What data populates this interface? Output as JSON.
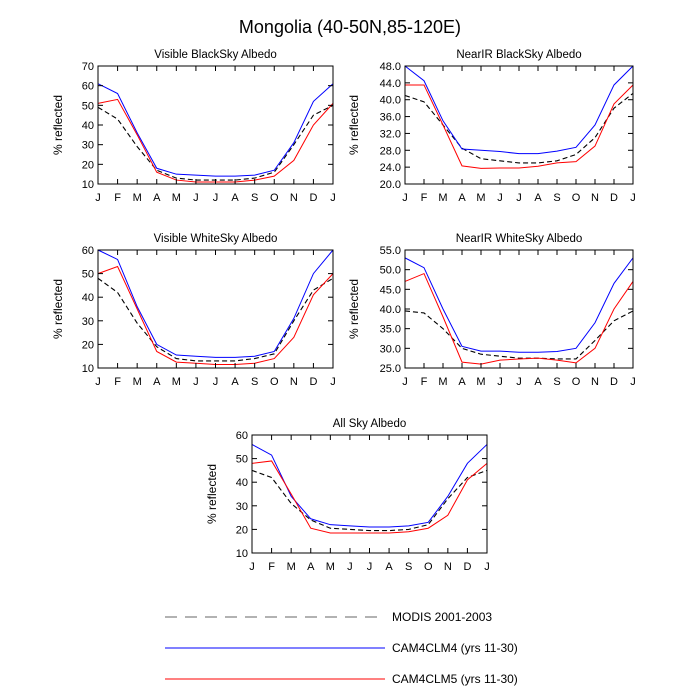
{
  "page": {
    "title": "Mongolia (40-50N,85-120E)"
  },
  "colors": {
    "modis": "#000000",
    "clm4": "#0000ff",
    "clm5": "#ff0000",
    "legend_modis": "#999999"
  },
  "legend": [
    {
      "label": "MODIS 2001-2003",
      "style": "dashed"
    },
    {
      "label": "CAM4CLM4 (yrs 11-30)",
      "style": "solid-blue"
    },
    {
      "label": "CAM4CLM5 (yrs 11-30)",
      "style": "solid-red"
    }
  ],
  "chart_data": [
    {
      "type": "line",
      "title": "Visible BlackSky Albedo",
      "ylabel": "% reflected",
      "categories": [
        "J",
        "F",
        "M",
        "A",
        "M",
        "J",
        "J",
        "A",
        "S",
        "O",
        "N",
        "D",
        "J"
      ],
      "ylim": [
        10,
        70
      ],
      "yticks": [
        10,
        20,
        30,
        40,
        50,
        60,
        70
      ],
      "ytick_labels": [
        "10",
        "20",
        "30",
        "40",
        "50",
        "60",
        "70"
      ],
      "series": [
        {
          "name": "MODIS 2001-2003",
          "values": [
            49,
            43,
            29,
            17,
            13,
            12,
            12,
            12,
            13,
            16,
            30,
            45,
            50
          ]
        },
        {
          "name": "CAM4CLM4 (yrs 11-30)",
          "values": [
            61,
            56,
            36,
            18,
            15,
            14.5,
            14,
            14,
            14.5,
            17,
            31,
            52,
            61
          ]
        },
        {
          "name": "CAM4CLM5 (yrs 11-30)",
          "values": [
            51,
            53,
            35,
            16,
            12,
            11,
            11,
            11,
            12,
            14,
            22,
            40,
            51
          ]
        }
      ]
    },
    {
      "type": "line",
      "title": "NearIR BlackSky Albedo",
      "ylabel": "% reflected",
      "categories": [
        "J",
        "F",
        "M",
        "A",
        "M",
        "J",
        "J",
        "A",
        "S",
        "O",
        "N",
        "D",
        "J"
      ],
      "ylim": [
        20,
        48
      ],
      "yticks": [
        20,
        24,
        28,
        32,
        36,
        40,
        44,
        48
      ],
      "ytick_labels": [
        "20.0",
        "24.0",
        "28.0",
        "32.0",
        "36.0",
        "40.0",
        "44.0",
        "48.0"
      ],
      "series": [
        {
          "name": "MODIS 2001-2003",
          "values": [
            41,
            39.5,
            34,
            28.5,
            26,
            25.5,
            25,
            25,
            25.5,
            27,
            31,
            38,
            41.5
          ]
        },
        {
          "name": "CAM4CLM4 (yrs 11-30)",
          "values": [
            48,
            44.5,
            35,
            28.3,
            28,
            27.7,
            27.2,
            27.2,
            27.8,
            28.7,
            34,
            43.5,
            48
          ]
        },
        {
          "name": "CAM4CLM5 (yrs 11-30)",
          "values": [
            43.5,
            43.5,
            34,
            24.3,
            23.7,
            23.8,
            23.8,
            24.2,
            25,
            25.3,
            29,
            39,
            43.5
          ]
        }
      ]
    },
    {
      "type": "line",
      "title": "Visible WhiteSky Albedo",
      "ylabel": "% reflected",
      "categories": [
        "J",
        "F",
        "M",
        "A",
        "M",
        "J",
        "J",
        "A",
        "S",
        "O",
        "N",
        "D",
        "J"
      ],
      "ylim": [
        10,
        60
      ],
      "yticks": [
        10,
        20,
        30,
        40,
        50,
        60
      ],
      "ytick_labels": [
        "10",
        "20",
        "30",
        "40",
        "50",
        "60"
      ],
      "series": [
        {
          "name": "MODIS 2001-2003",
          "values": [
            48,
            42,
            29,
            19,
            14,
            13,
            13,
            13,
            14,
            16,
            30,
            43,
            48
          ]
        },
        {
          "name": "CAM4CLM4 (yrs 11-30)",
          "values": [
            60,
            56,
            36,
            20,
            15.5,
            15,
            14.5,
            14.5,
            15,
            17,
            31,
            50,
            60
          ]
        },
        {
          "name": "CAM4CLM5 (yrs 11-30)",
          "values": [
            50,
            53,
            35,
            17,
            12.5,
            12,
            11.5,
            11.5,
            12,
            14,
            23,
            41,
            50
          ]
        }
      ]
    },
    {
      "type": "line",
      "title": "NearIR WhiteSky Albedo",
      "ylabel": "% reflected",
      "categories": [
        "J",
        "F",
        "M",
        "A",
        "M",
        "J",
        "J",
        "A",
        "S",
        "O",
        "N",
        "D",
        "J"
      ],
      "ylim": [
        25,
        55
      ],
      "yticks": [
        25,
        30,
        35,
        40,
        45,
        50,
        55
      ],
      "ytick_labels": [
        "25.0",
        "30.0",
        "35.0",
        "40.0",
        "45.0",
        "50.0",
        "55.0"
      ],
      "series": [
        {
          "name": "MODIS 2001-2003",
          "values": [
            39.5,
            39,
            35,
            30,
            28.5,
            28,
            27.5,
            27.5,
            27.3,
            27.3,
            32,
            37,
            39.5
          ]
        },
        {
          "name": "CAM4CLM4 (yrs 11-30)",
          "values": [
            53,
            50.5,
            40,
            30.5,
            29.3,
            29.3,
            29,
            29,
            29.2,
            30,
            36.5,
            46.5,
            53
          ]
        },
        {
          "name": "CAM4CLM5 (yrs 11-30)",
          "values": [
            47,
            49,
            38,
            26.5,
            26,
            27,
            27.3,
            27.5,
            27,
            26.3,
            30,
            40,
            47
          ]
        }
      ]
    },
    {
      "type": "line",
      "title": "All Sky Albedo",
      "ylabel": "% reflected",
      "categories": [
        "J",
        "F",
        "M",
        "A",
        "M",
        "J",
        "J",
        "A",
        "S",
        "O",
        "N",
        "D",
        "J"
      ],
      "ylim": [
        10,
        60
      ],
      "yticks": [
        10,
        20,
        30,
        40,
        50,
        60
      ],
      "ytick_labels": [
        "10",
        "20",
        "30",
        "40",
        "50",
        "60"
      ],
      "series": [
        {
          "name": "MODIS 2001-2003",
          "values": [
            45,
            42,
            31,
            24,
            20.5,
            20,
            19.5,
            19.5,
            20,
            22,
            33,
            42,
            45
          ]
        },
        {
          "name": "CAM4CLM4 (yrs 11-30)",
          "values": [
            56,
            51.5,
            34,
            24.5,
            22,
            21.5,
            21,
            21,
            21.5,
            23,
            34,
            48,
            56
          ]
        },
        {
          "name": "CAM4CLM5 (yrs 11-30)",
          "values": [
            48,
            49,
            35,
            20.5,
            18.5,
            18.5,
            18.5,
            18.5,
            19,
            20.5,
            26,
            41,
            48
          ]
        }
      ]
    }
  ]
}
